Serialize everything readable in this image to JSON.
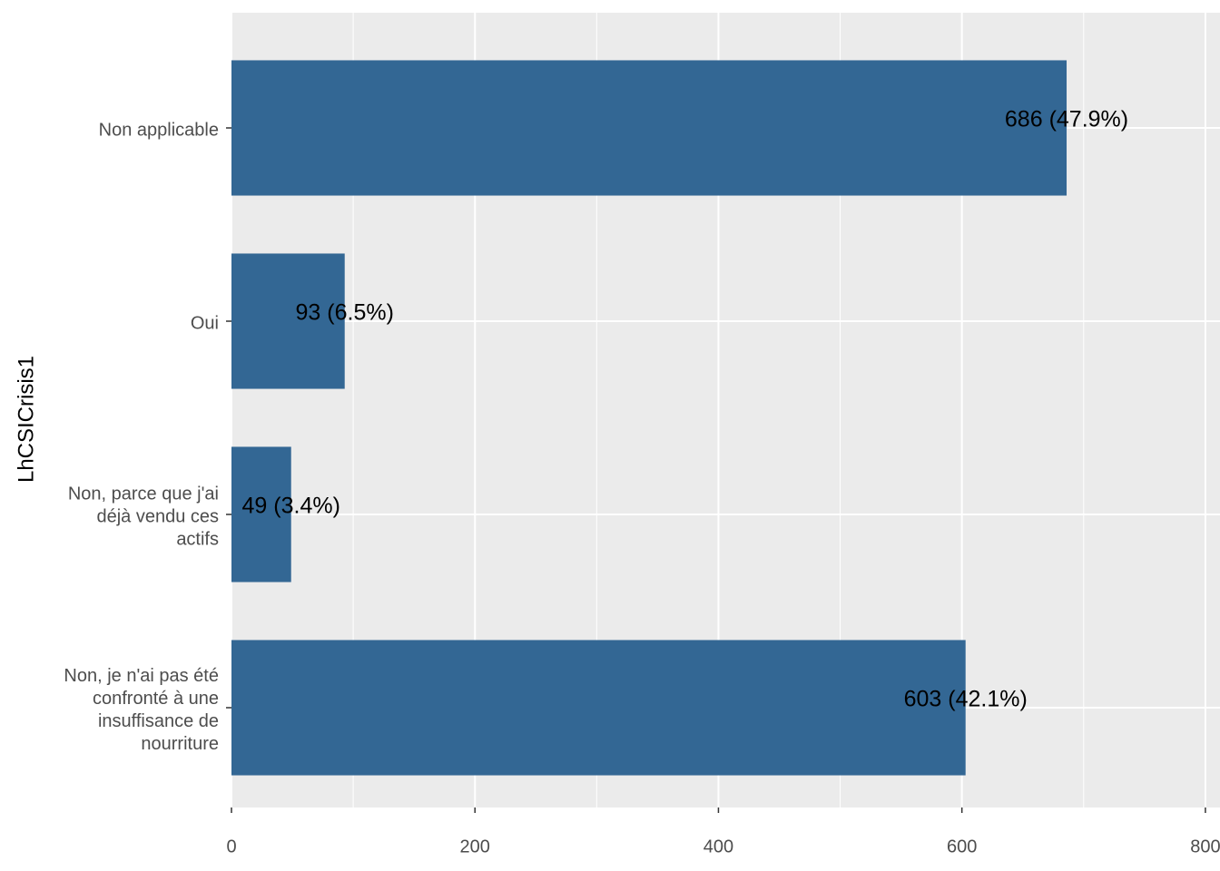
{
  "chart_data": {
    "type": "hbar",
    "y_axis_label": "LhCSICrisis1",
    "categories": [
      [
        "Non applicable"
      ],
      [
        "Oui"
      ],
      [
        "Non, parce que j'ai",
        "déjà vendu ces",
        "actifs"
      ],
      [
        "Non, je n'ai pas été",
        "confronté à une",
        "insuffisance de",
        "nourriture"
      ]
    ],
    "values": [
      686,
      93,
      49,
      603
    ],
    "value_labels": [
      "686 (47.9%)",
      "93 (6.5%)",
      "49 (3.4%)",
      "603 (42.1%)"
    ],
    "color": "#336794",
    "xlim": [
      0,
      812
    ],
    "xticks": [
      0,
      200,
      400,
      600,
      800
    ],
    "minor_xticks": [
      100,
      300,
      500,
      700
    ],
    "grid": true
  }
}
